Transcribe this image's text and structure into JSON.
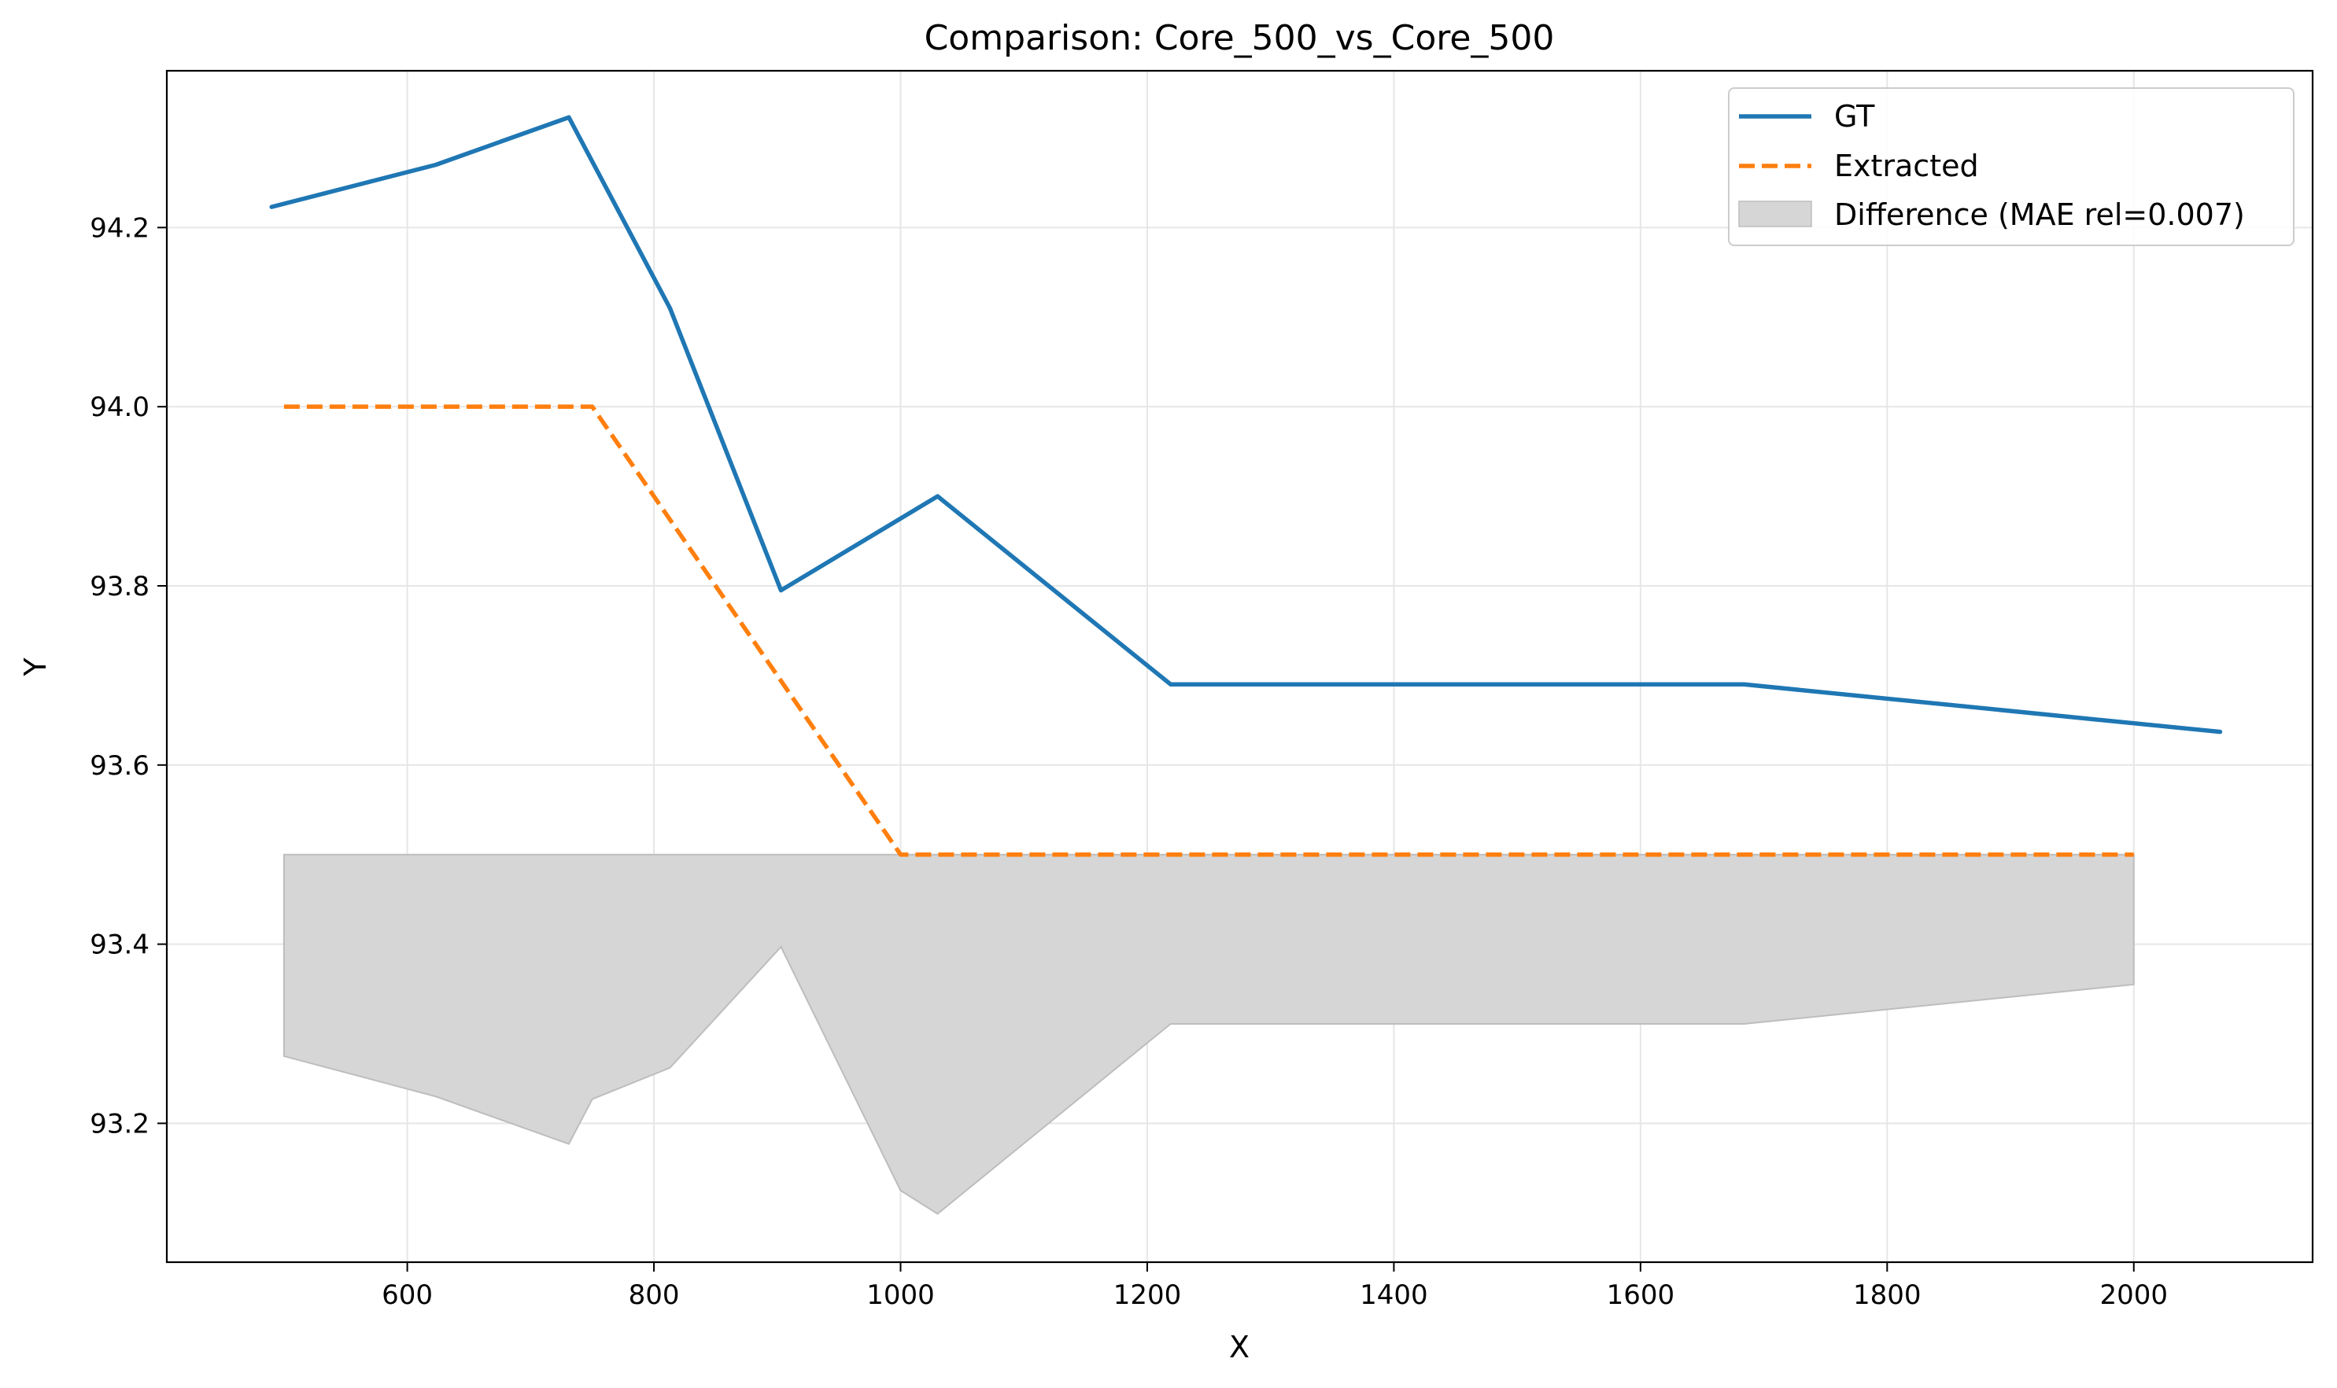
{
  "chart_data": {
    "type": "line",
    "title": "Comparison: Core_500_vs_Core_500",
    "xlabel": "X",
    "ylabel": "Y",
    "xlim": [
      405,
      2145
    ],
    "ylim": [
      93.045,
      94.375
    ],
    "x_ticks": [
      600,
      800,
      1000,
      1200,
      1400,
      1600,
      1800,
      2000
    ],
    "y_ticks": [
      93.2,
      93.4,
      93.6,
      93.8,
      94.0,
      94.2
    ],
    "x_tick_labels": [
      "600",
      "800",
      "1000",
      "1200",
      "1400",
      "1600",
      "1800",
      "2000"
    ],
    "y_tick_labels": [
      "93.2",
      "93.4",
      "93.6",
      "93.8",
      "94.0",
      "94.2"
    ],
    "grid": true,
    "legend_position": "top-right",
    "series": [
      {
        "name": "GT",
        "style": "solid",
        "color": "#1f77b4",
        "x": [
          490,
          623,
          731,
          813,
          903,
          1030,
          1219,
          1684,
          2070
        ],
        "y": [
          94.223,
          94.27,
          94.323,
          94.11,
          93.795,
          93.9,
          93.69,
          93.69,
          93.637
        ]
      },
      {
        "name": "Extracted",
        "style": "dashed",
        "color": "#ff7f0e",
        "x": [
          500,
          750,
          1000,
          2000
        ],
        "y": [
          94.0,
          94.0,
          93.5,
          93.5
        ]
      }
    ],
    "difference_band": {
      "name": "Difference (MAE rel=0.007)",
      "color": "#d6d6d6",
      "edge_color": "#bdbdbd",
      "upper": {
        "x": [
          500,
          2000
        ],
        "y": [
          93.5,
          93.5
        ]
      },
      "lower": {
        "x": [
          500,
          623,
          731,
          750,
          813,
          903,
          1000,
          1030,
          1219,
          1684,
          2000
        ],
        "y": [
          93.275,
          93.23,
          93.177,
          93.227,
          93.262,
          93.397,
          93.125,
          93.099,
          93.311,
          93.311,
          93.355
        ]
      }
    }
  }
}
